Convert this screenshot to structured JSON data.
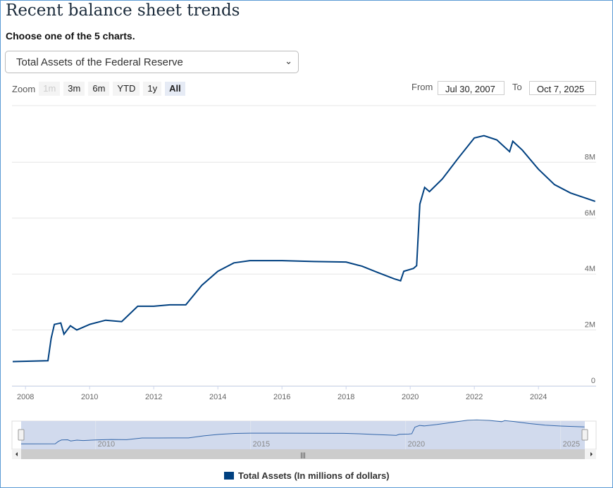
{
  "title": "Recent balance sheet trends",
  "subtitle": "Choose one of the 5 charts.",
  "select": {
    "value": "Total Assets of the Federal Reserve"
  },
  "zoom": {
    "label": "Zoom",
    "buttons": [
      "1m",
      "3m",
      "6m",
      "YTD",
      "1y",
      "All"
    ]
  },
  "range": {
    "from_label": "From",
    "from": "Jul 30, 2007",
    "to_label": "To",
    "to": "Oct 7, 2025"
  },
  "colors": {
    "series": "#004080"
  },
  "chart_data": {
    "type": "line",
    "title": "",
    "series": [
      {
        "name": "Total Assets (In millions of dollars)",
        "x": [
          2007.6,
          2008.7,
          2008.8,
          2008.9,
          2009.1,
          2009.2,
          2009.4,
          2009.6,
          2010,
          2010.5,
          2011,
          2011.5,
          2012,
          2012.5,
          2013,
          2013.5,
          2014,
          2014.5,
          2015,
          2016,
          2017,
          2018,
          2018.5,
          2019,
          2019.5,
          2019.7,
          2019.8,
          2020.1,
          2020.2,
          2020.3,
          2020.45,
          2020.6,
          2021,
          2021.5,
          2022,
          2022.3,
          2022.7,
          2023.1,
          2023.2,
          2023.5,
          2024,
          2024.5,
          2025,
          2025.77
        ],
        "values": [
          0.87,
          0.9,
          1.7,
          2.2,
          2.25,
          1.85,
          2.15,
          2.0,
          2.2,
          2.35,
          2.3,
          2.85,
          2.85,
          2.9,
          2.9,
          3.6,
          4.1,
          4.4,
          4.48,
          4.48,
          4.45,
          4.43,
          4.28,
          4.05,
          3.83,
          3.76,
          4.1,
          4.2,
          4.3,
          6.5,
          7.1,
          6.95,
          7.4,
          8.15,
          8.87,
          8.95,
          8.8,
          8.38,
          8.75,
          8.43,
          7.75,
          7.2,
          6.9,
          6.6
        ]
      }
    ],
    "xticks": [
      "2008",
      "2010",
      "2012",
      "2014",
      "2016",
      "2018",
      "2020",
      "2022",
      "2024"
    ],
    "yticks": [
      "0",
      "2M",
      "4M",
      "6M",
      "8M"
    ],
    "navigator_ticks": [
      "2010",
      "2015",
      "2020",
      "2025"
    ],
    "xlim": [
      2007.6,
      2025.77
    ],
    "ylim": [
      0,
      10
    ],
    "grid": true,
    "legend": "bottom-center"
  }
}
